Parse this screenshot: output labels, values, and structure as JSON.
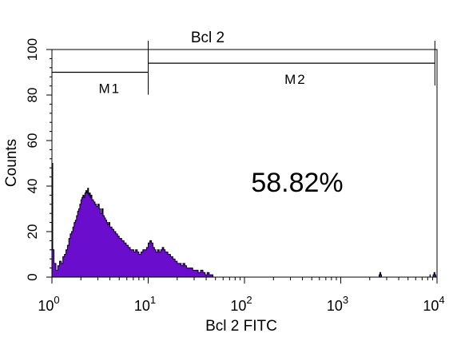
{
  "chart_data": {
    "type": "area",
    "title": "Bcl 2",
    "xlabel": "Bcl 2 FITC",
    "ylabel": "Counts",
    "xscale": "log",
    "xlim": [
      1,
      10000
    ],
    "ylim": [
      0,
      100
    ],
    "x_ticks": [
      {
        "base": "10",
        "exp": "0",
        "value": 1
      },
      {
        "base": "10",
        "exp": "1",
        "value": 10
      },
      {
        "base": "10",
        "exp": "2",
        "value": 100
      },
      {
        "base": "10",
        "exp": "3",
        "value": 1000
      },
      {
        "base": "10",
        "exp": "4",
        "value": 10000
      }
    ],
    "y_ticks": [
      "0",
      "20",
      "40",
      "60",
      "80",
      "100"
    ],
    "y_tick_values": [
      0,
      20,
      40,
      60,
      80,
      100
    ],
    "fill_color": "#6a0dcc",
    "outline_color": "#000000",
    "annotation": "58.82%",
    "markers": [
      {
        "label": "M1",
        "from": 1,
        "to": 10,
        "level": 90
      },
      {
        "label": "M2",
        "from": 10,
        "to": 9500,
        "level": 94
      }
    ],
    "histogram": [
      [
        1.0,
        50
      ],
      [
        1.02,
        12
      ],
      [
        1.05,
        6
      ],
      [
        1.1,
        3
      ],
      [
        1.15,
        5
      ],
      [
        1.2,
        7
      ],
      [
        1.25,
        6
      ],
      [
        1.3,
        9
      ],
      [
        1.35,
        10
      ],
      [
        1.4,
        12
      ],
      [
        1.45,
        14
      ],
      [
        1.5,
        17
      ],
      [
        1.55,
        19
      ],
      [
        1.6,
        20
      ],
      [
        1.65,
        22
      ],
      [
        1.7,
        24
      ],
      [
        1.75,
        25
      ],
      [
        1.8,
        27
      ],
      [
        1.85,
        29
      ],
      [
        1.9,
        30
      ],
      [
        1.95,
        32
      ],
      [
        2.0,
        34
      ],
      [
        2.05,
        35
      ],
      [
        2.1,
        36
      ],
      [
        2.15,
        35
      ],
      [
        2.2,
        37
      ],
      [
        2.25,
        38
      ],
      [
        2.3,
        37
      ],
      [
        2.35,
        39
      ],
      [
        2.4,
        36
      ],
      [
        2.45,
        37
      ],
      [
        2.5,
        35
      ],
      [
        2.55,
        36
      ],
      [
        2.6,
        34
      ],
      [
        2.7,
        33
      ],
      [
        2.8,
        32
      ],
      [
        2.9,
        31
      ],
      [
        3.0,
        32
      ],
      [
        3.1,
        30
      ],
      [
        3.2,
        28
      ],
      [
        3.3,
        30
      ],
      [
        3.4,
        27
      ],
      [
        3.5,
        26
      ],
      [
        3.6,
        25
      ],
      [
        3.7,
        24
      ],
      [
        3.8,
        23
      ],
      [
        3.9,
        24
      ],
      [
        4.0,
        22
      ],
      [
        4.2,
        21
      ],
      [
        4.4,
        20
      ],
      [
        4.6,
        19
      ],
      [
        4.8,
        18
      ],
      [
        5.0,
        17
      ],
      [
        5.3,
        16
      ],
      [
        5.6,
        15
      ],
      [
        5.9,
        14
      ],
      [
        6.2,
        13
      ],
      [
        6.5,
        12
      ],
      [
        6.8,
        12
      ],
      [
        7.1,
        11
      ],
      [
        7.4,
        12
      ],
      [
        7.7,
        11
      ],
      [
        8.0,
        10
      ],
      [
        8.4,
        11
      ],
      [
        8.8,
        12
      ],
      [
        9.2,
        12
      ],
      [
        9.6,
        13
      ],
      [
        10.0,
        15
      ],
      [
        10.4,
        16
      ],
      [
        10.8,
        15
      ],
      [
        11.2,
        13
      ],
      [
        11.6,
        12
      ],
      [
        12.0,
        11
      ],
      [
        12.5,
        12
      ],
      [
        13.0,
        11
      ],
      [
        13.5,
        12
      ],
      [
        14.0,
        13
      ],
      [
        14.5,
        12
      ],
      [
        15.0,
        11
      ],
      [
        16.0,
        10
      ],
      [
        17.0,
        9
      ],
      [
        18.0,
        8
      ],
      [
        19.0,
        7
      ],
      [
        20.0,
        6
      ],
      [
        21.0,
        6
      ],
      [
        22.0,
        5
      ],
      [
        23.0,
        6
      ],
      [
        24.0,
        5
      ],
      [
        25.0,
        4
      ],
      [
        27.0,
        4
      ],
      [
        29.0,
        3
      ],
      [
        31.0,
        3
      ],
      [
        33.0,
        2
      ],
      [
        35.0,
        3
      ],
      [
        37.0,
        2
      ],
      [
        39.0,
        1
      ],
      [
        41.0,
        2
      ],
      [
        43.0,
        1
      ],
      [
        45.0,
        1
      ],
      [
        47.0,
        0
      ],
      [
        52.0,
        0
      ],
      [
        2450,
        0
      ],
      [
        2500,
        1
      ],
      [
        2550,
        2
      ],
      [
        2600,
        1
      ],
      [
        2650,
        0
      ],
      [
        8400,
        0
      ],
      [
        8450,
        1
      ],
      [
        8500,
        0
      ],
      [
        9000,
        0
      ],
      [
        9100,
        1
      ],
      [
        9300,
        2
      ],
      [
        9500,
        1
      ],
      [
        9700,
        0
      ]
    ]
  }
}
